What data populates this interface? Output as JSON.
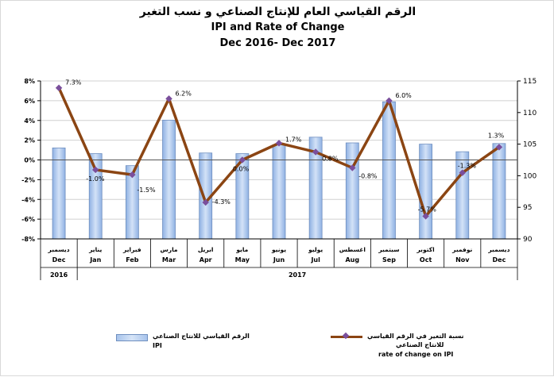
{
  "titles": {
    "arabic": "الرقم القياسي العام للإنتاج الصناعي و نسب التغير",
    "english": "IPI and Rate of Change",
    "period": "Dec 2016- Dec 2017"
  },
  "legend": {
    "ipi_ar": "الرقم القياسي للانتاج الصناعي",
    "ipi_en": "IPI",
    "rate_ar_1": "نسبة التغير في الرقم القياسي",
    "rate_ar_2": "للانتاج الصناعي",
    "rate_en": "rate of change on IPI"
  },
  "colors": {
    "bar": "#9ab9e8",
    "line": "#8b4513",
    "marker": "#7a4f9c",
    "grid": "#d0d0d0"
  },
  "chart_data": {
    "type": "bar",
    "title": "IPI and Rate of Change",
    "categories_en": [
      "Dec",
      "Jan",
      "Feb",
      "Mar",
      "Apr",
      "May",
      "Jun",
      "Jul",
      "Aug",
      "Sep",
      "Oct",
      "Nov",
      "Dec"
    ],
    "categories_ar": [
      "ديسمبر",
      "يناير",
      "فبراير",
      "مارس",
      "ابريل",
      "مايو",
      "يونيو",
      "يوليو",
      "اغسطس",
      "سبتمبر",
      "اكتوبر",
      "نوفمبر",
      "ديسمبر"
    ],
    "years": [
      {
        "label": "2016",
        "span": 1
      },
      {
        "label": "2017",
        "span": 12
      }
    ],
    "series": [
      {
        "name": "IPI",
        "type": "bar",
        "axis": "right",
        "values": [
          104.4,
          103.5,
          101.6,
          108.8,
          103.6,
          103.5,
          104.9,
          106.1,
          105.2,
          111.7,
          105.0,
          103.8,
          105.1
        ]
      },
      {
        "name": "rate of change on IPI",
        "type": "line",
        "axis": "left",
        "values": [
          7.3,
          -1.0,
          -1.5,
          6.2,
          -4.3,
          0.0,
          1.7,
          0.8,
          -0.8,
          6.0,
          -5.7,
          -1.3,
          1.3
        ],
        "labels": [
          "7.3%",
          "-1.0%",
          "-1.5%",
          "6.2%",
          "-4.3%",
          "0.0%",
          "1.7%",
          "0.8%",
          "-0.8%",
          "6.0%",
          "-5.7%",
          "-1.3%",
          "1.3%"
        ]
      }
    ],
    "left_axis": {
      "ylim": [
        -8,
        8
      ],
      "ticks": [
        "-8%",
        "-6%",
        "-4%",
        "-2%",
        "0%",
        "2%",
        "4%",
        "6%",
        "8%"
      ]
    },
    "right_axis": {
      "ylim": [
        90,
        115
      ],
      "ticks": [
        "90",
        "95",
        "100",
        "105",
        "110",
        "115"
      ]
    },
    "grid": true,
    "legend_position": "bottom"
  }
}
